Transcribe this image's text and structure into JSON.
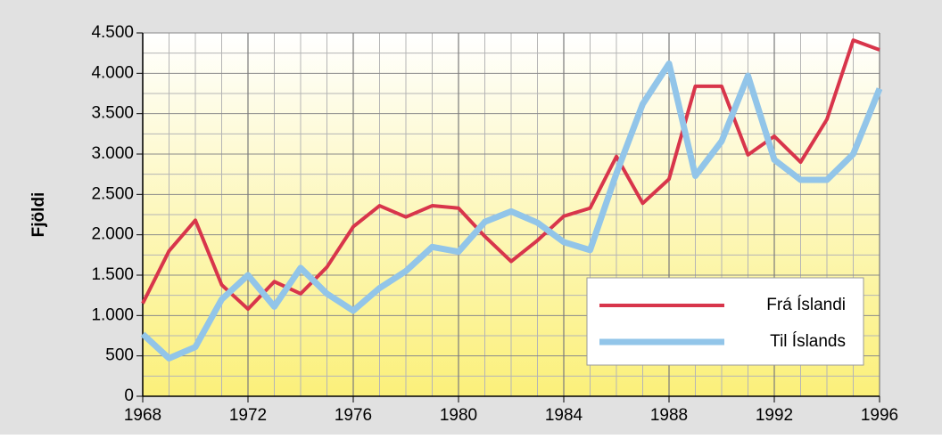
{
  "chart_data": {
    "type": "line",
    "ylabel": "Fjöldi",
    "x": [
      1968,
      1969,
      1970,
      1971,
      1972,
      1973,
      1974,
      1975,
      1976,
      1977,
      1978,
      1979,
      1980,
      1981,
      1982,
      1983,
      1984,
      1985,
      1986,
      1987,
      1988,
      1989,
      1990,
      1991,
      1992,
      1993,
      1994,
      1995,
      1996
    ],
    "series": [
      {
        "name": "Frá Íslandi",
        "color": "#d8354b",
        "values": [
          1150,
          1800,
          2180,
          1380,
          1080,
          1420,
          1270,
          1600,
          2100,
          2360,
          2220,
          2360,
          2330,
          1980,
          1670,
          1930,
          2230,
          2330,
          2970,
          2390,
          2690,
          3840,
          3840,
          2990,
          3220,
          2900,
          3430,
          4410,
          4290
        ]
      },
      {
        "name": "Til Íslands",
        "color": "#92c5e9",
        "values": [
          770,
          470,
          610,
          1200,
          1500,
          1110,
          1590,
          1270,
          1060,
          1340,
          1550,
          1850,
          1790,
          2160,
          2290,
          2150,
          1910,
          1810,
          2760,
          3620,
          4120,
          2730,
          3160,
          3970,
          2930,
          2680,
          2680,
          3000,
          3810
        ]
      }
    ],
    "xlim": [
      1968,
      1996
    ],
    "xticks": [
      1968,
      1972,
      1976,
      1980,
      1984,
      1988,
      1992,
      1996
    ],
    "x_minor_ticks": [
      1969,
      1970,
      1971,
      1973,
      1974,
      1975,
      1977,
      1978,
      1979,
      1981,
      1982,
      1983,
      1985,
      1986,
      1987,
      1989,
      1990,
      1991,
      1993,
      1994,
      1995
    ],
    "ylim": [
      0,
      4500
    ],
    "yticks": [
      0,
      500,
      {
        "value": 1000,
        "label": "1.000"
      },
      {
        "value": 1500,
        "label": "1.500"
      },
      {
        "value": 2000,
        "label": "2.000"
      },
      {
        "value": 2500,
        "label": "2.500"
      },
      {
        "value": 3000,
        "label": "3.000"
      },
      {
        "value": 3500,
        "label": "3.500"
      },
      {
        "value": 4000,
        "label": "4.000"
      },
      {
        "value": 4500,
        "label": "4.500"
      }
    ],
    "y_minor_ticks": [
      250,
      750,
      1250,
      1750,
      2250,
      2750,
      3250,
      3750,
      4250
    ],
    "grid": true,
    "legend": "lower right"
  }
}
